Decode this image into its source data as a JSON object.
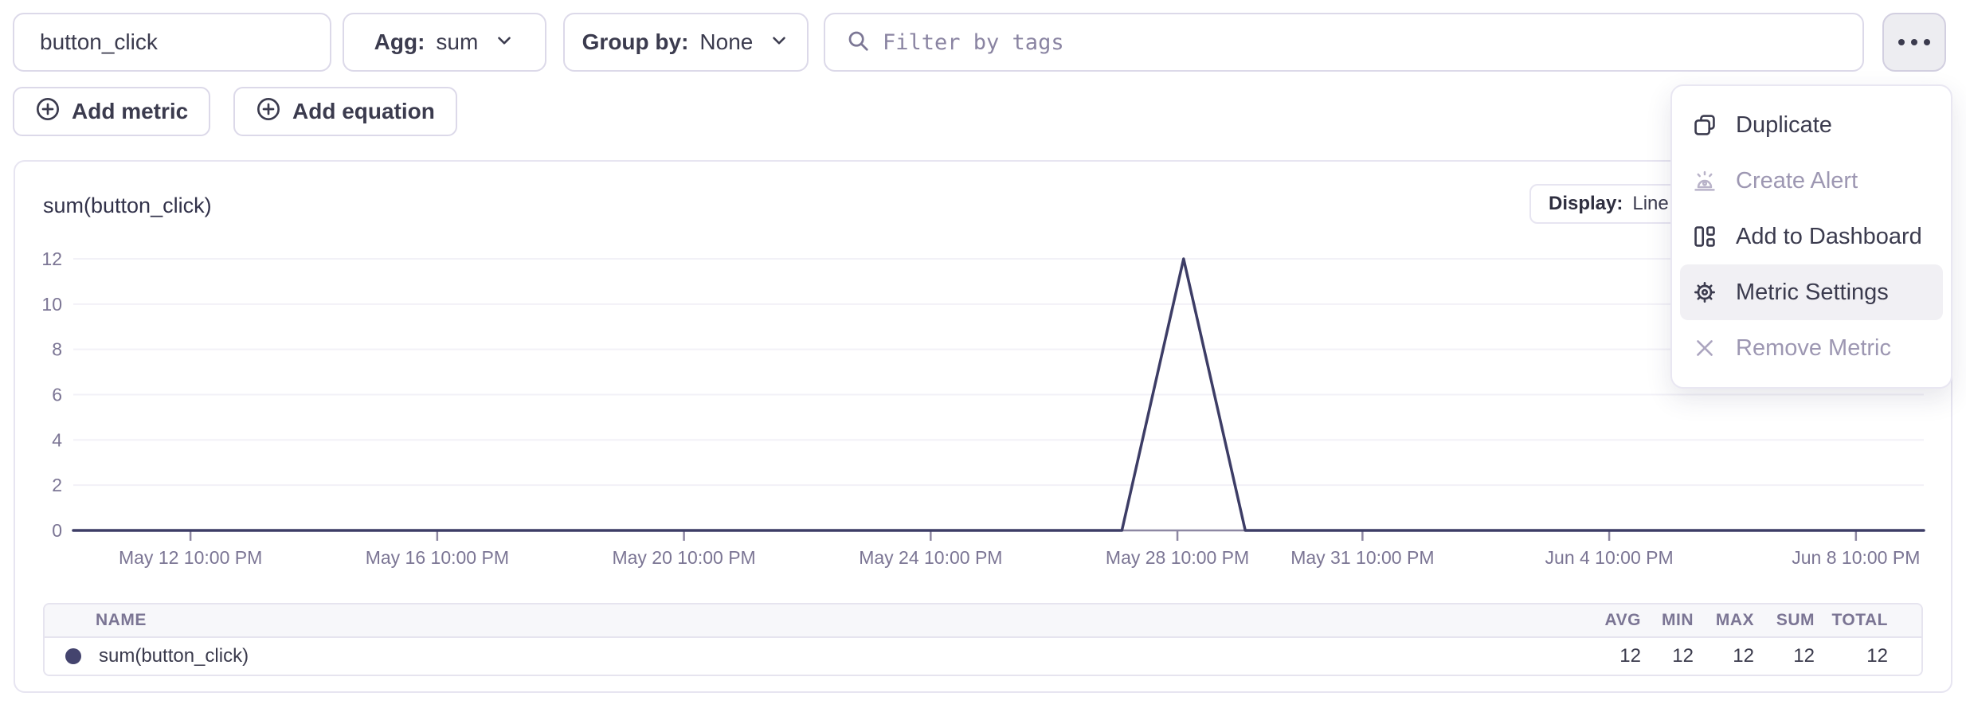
{
  "toolbar": {
    "metric_input": {
      "value": "button_click"
    },
    "agg": {
      "label": "Agg:",
      "value": "sum"
    },
    "group_by": {
      "label": "Group by:",
      "value": "None"
    },
    "filter": {
      "placeholder": "Filter by tags"
    }
  },
  "actions": {
    "add_metric": "Add metric",
    "add_equation": "Add equation"
  },
  "menu": {
    "items": [
      {
        "label": "Duplicate",
        "icon": "duplicate-icon",
        "enabled": true,
        "highlighted": false
      },
      {
        "label": "Create Alert",
        "icon": "alert-icon",
        "enabled": false,
        "highlighted": false
      },
      {
        "label": "Add to Dashboard",
        "icon": "dashboard-icon",
        "enabled": true,
        "highlighted": false
      },
      {
        "label": "Metric Settings",
        "icon": "gear-icon",
        "enabled": true,
        "highlighted": true
      },
      {
        "label": "Remove Metric",
        "icon": "x-icon",
        "enabled": false,
        "highlighted": false
      }
    ]
  },
  "chart": {
    "title": "sum(button_click)",
    "display": {
      "label": "Display:",
      "value": "Line"
    }
  },
  "chart_data": {
    "type": "line",
    "title": "sum(button_click)",
    "series": [
      {
        "name": "sum(button_click)",
        "color": "#3d3d66",
        "points": [
          [
            -1.9,
            0
          ],
          [
            15.1,
            0
          ],
          [
            16.1,
            12
          ],
          [
            17.1,
            0
          ],
          [
            28.1,
            0
          ]
        ]
      }
    ],
    "x_unit": "days since May 12 10:00 PM",
    "x_domain": [
      -1.9,
      28.1
    ],
    "xticks": [
      {
        "x": 0,
        "label": "May 12 10:00 PM"
      },
      {
        "x": 4,
        "label": "May 16 10:00 PM"
      },
      {
        "x": 8,
        "label": "May 20 10:00 PM"
      },
      {
        "x": 12,
        "label": "May 24 10:00 PM"
      },
      {
        "x": 16,
        "label": "May 28 10:00 PM"
      },
      {
        "x": 19,
        "label": "May 31 10:00 PM"
      },
      {
        "x": 23,
        "label": "Jun 4 10:00 PM"
      },
      {
        "x": 27,
        "label": "Jun 8 10:00 PM"
      }
    ],
    "ylim": [
      0,
      12
    ],
    "yticks": [
      0,
      2,
      4,
      6,
      8,
      10,
      12
    ],
    "grid": true,
    "legend": "none",
    "colors": {
      "axis": "#8d87a2",
      "grid": "#f2f1f7",
      "tick_label": "#7b7594"
    }
  },
  "table": {
    "headers": [
      "NAME",
      "AVG",
      "MIN",
      "MAX",
      "SUM",
      "TOTAL"
    ],
    "rows": [
      {
        "name": "sum(button_click)",
        "avg": "12",
        "min": "12",
        "max": "12",
        "sum": "12",
        "total": "12",
        "color": "#44446e"
      }
    ]
  }
}
